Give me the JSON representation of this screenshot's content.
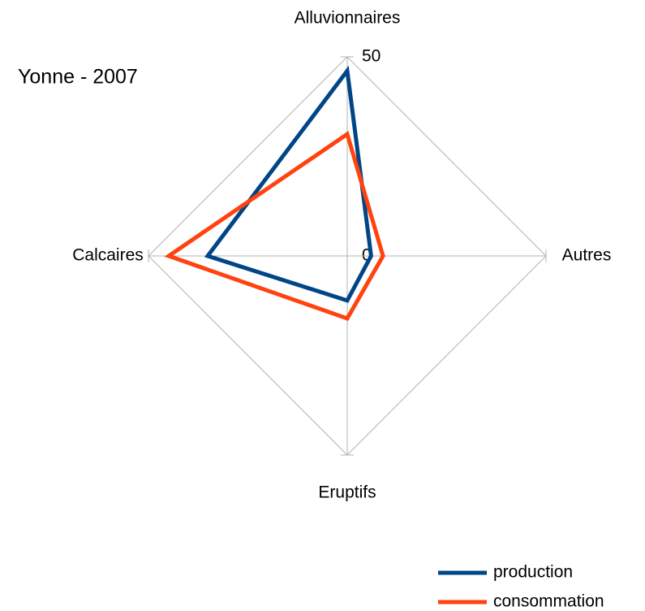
{
  "chart_data": {
    "type": "radar",
    "title": "Yonne - 2007",
    "categories": [
      "Alluvionnaires",
      "Autres",
      "Eruptifs",
      "Calcaires"
    ],
    "series": [
      {
        "name": "production",
        "color": "#004586",
        "values": [
          46.5,
          6,
          11.2,
          35.1
        ]
      },
      {
        "name": "consommation",
        "color": "#ff420e",
        "values": [
          30.6,
          9,
          15.7,
          44.9
        ]
      }
    ],
    "rlim": [
      0,
      50
    ],
    "rticks": [
      0,
      50
    ],
    "grid": true,
    "legend": "bottom-right"
  }
}
